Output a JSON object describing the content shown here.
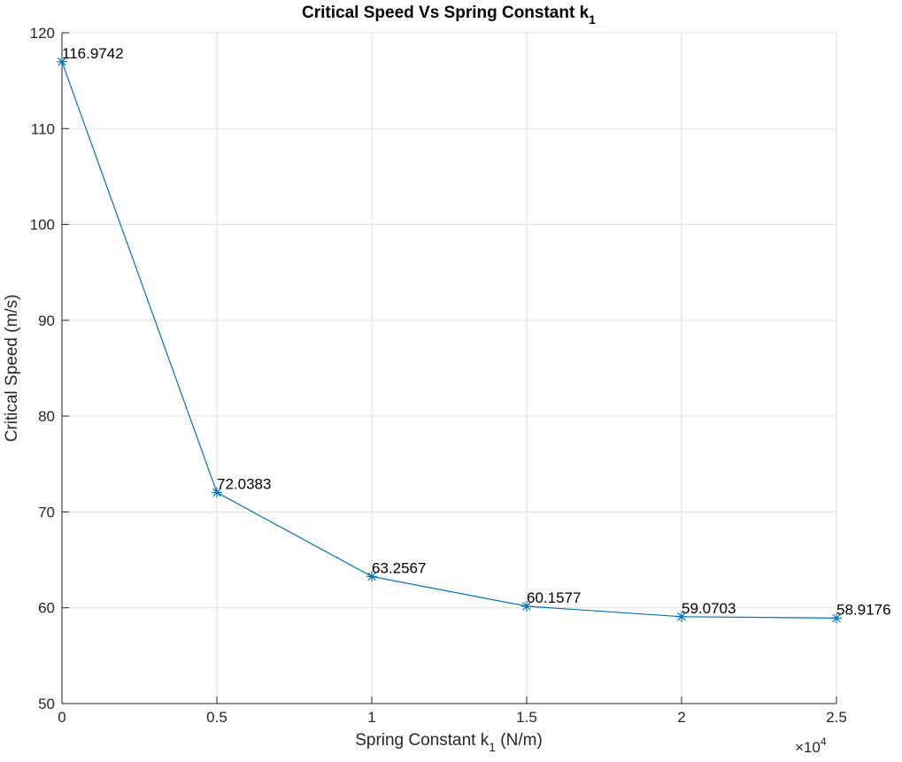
{
  "chart_data": {
    "type": "line",
    "title": "Critical Speed Vs Spring Constant k",
    "title_subscript": "1",
    "xlabel": "Spring Constant k",
    "xlabel_subscript": "1",
    "xlabel_suffix": " (N/m)",
    "ylabel": "Critical Speed (m/s)",
    "x_exponent_label": "×10",
    "x_exponent_power": "4",
    "x_scale": 10000,
    "xlim": [
      0,
      25000
    ],
    "ylim": [
      50,
      120
    ],
    "x_ticks": [
      0,
      5000,
      10000,
      15000,
      20000,
      25000
    ],
    "x_tick_labels": [
      "0",
      "0.5",
      "1",
      "1.5",
      "2",
      "2.5"
    ],
    "y_ticks": [
      50,
      60,
      70,
      80,
      90,
      100,
      110,
      120
    ],
    "y_tick_labels": [
      "50",
      "60",
      "70",
      "80",
      "90",
      "100",
      "110",
      "120"
    ],
    "grid": true,
    "series": [
      {
        "color": "#0072bd",
        "marker": "asterisk",
        "x": [
          0,
          5000,
          10000,
          15000,
          20000,
          25000
        ],
        "y": [
          116.9742,
          72.0383,
          63.2567,
          60.1577,
          59.0703,
          58.9176
        ],
        "point_labels": [
          "116.9742",
          "72.0383",
          "63.2567",
          "60.1577",
          "59.0703",
          "58.9176"
        ]
      }
    ]
  }
}
